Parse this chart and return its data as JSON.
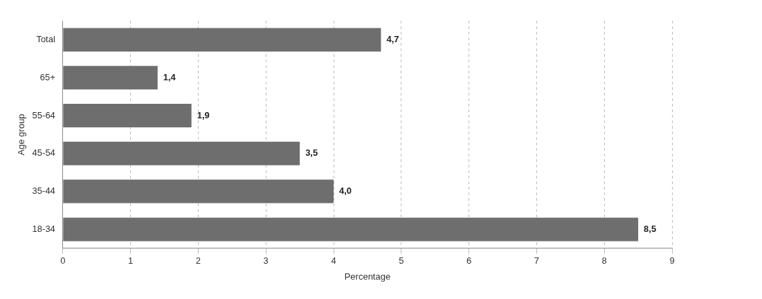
{
  "chart_data": {
    "type": "bar",
    "orientation": "horizontal",
    "xlabel": "Percentage",
    "ylabel": "Age group",
    "categories": [
      "Total",
      "65+",
      "55-64",
      "45-54",
      "35-44",
      "18-34"
    ],
    "values": [
      4.7,
      1.4,
      1.9,
      3.5,
      4.0,
      8.5
    ],
    "value_labels": [
      "4,7",
      "1,4",
      "1,9",
      "3,5",
      "4,0",
      "8,5"
    ],
    "color": "#6e6e6e",
    "xlim": [
      0,
      9
    ],
    "xticks": [
      0,
      1,
      2,
      3,
      4,
      5,
      6,
      7,
      8,
      9
    ],
    "grid": "x",
    "legend": false
  }
}
